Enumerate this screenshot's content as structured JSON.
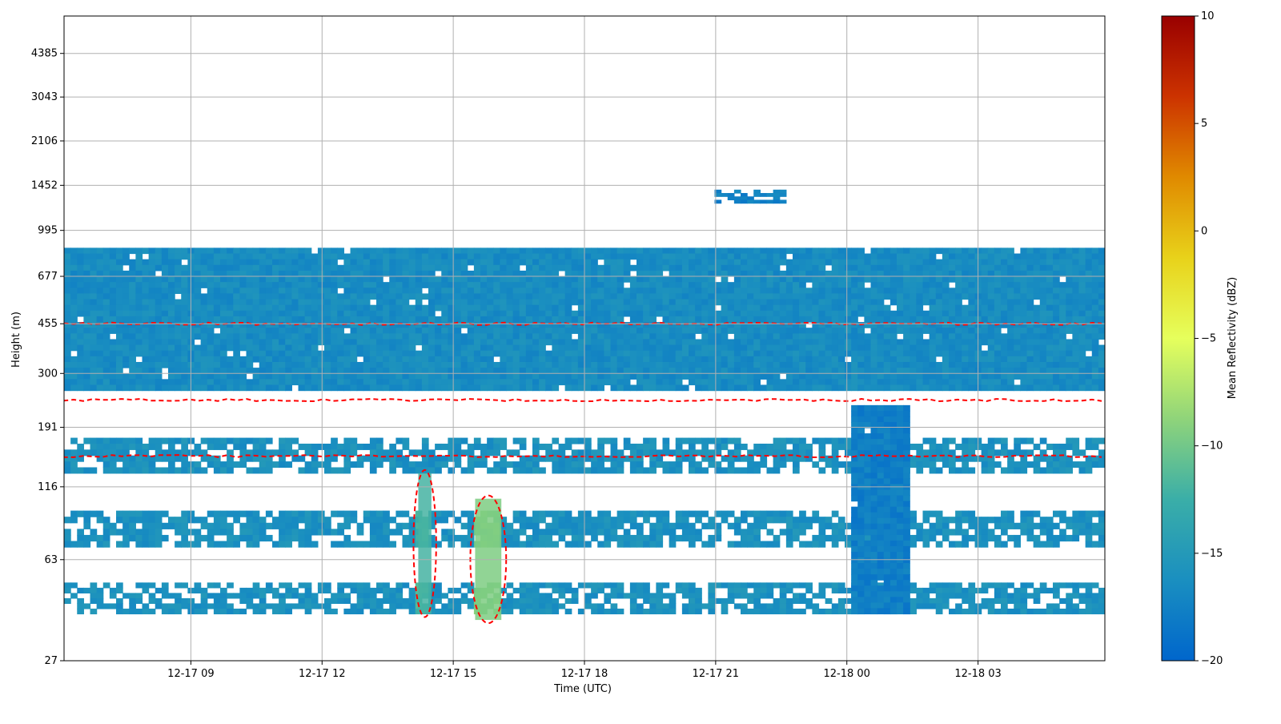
{
  "chart_data": {
    "type": "heatmap",
    "xlabel": "Time (UTC)",
    "ylabel": "Height (m)",
    "x_tick_labels": [
      "12-17 09",
      "12-17 12",
      "12-17 15",
      "12-17 18",
      "12-17 21",
      "12-18 00",
      "12-18 03"
    ],
    "x_tick_hours": [
      9,
      12,
      15,
      18,
      21,
      24,
      27
    ],
    "xlim_hours": [
      6.1,
      29.9
    ],
    "y_tick_labels": [
      "27",
      "63",
      "116",
      "191",
      "300",
      "455",
      "677",
      "995",
      "1452",
      "2106",
      "3043",
      "4385"
    ],
    "y_scale": "log",
    "ylim": [
      27,
      6000
    ],
    "grid": true,
    "colorbar": {
      "label": "Mean Reflectivity (dBZ)",
      "ticks": [
        "10",
        "5",
        "0",
        "−5",
        "−10",
        "−15",
        "−20"
      ],
      "tick_values": [
        10,
        5,
        0,
        -5,
        -10,
        -15,
        -20
      ],
      "range": [
        -20,
        10
      ],
      "colormap": [
        "#0066cc",
        "#1a8fc0",
        "#3aaea8",
        "#8fd47a",
        "#e6ff5c",
        "#e8d21a",
        "#e08a00",
        "#cc3300",
        "#990000"
      ]
    },
    "contour_color": "#ff0000",
    "layers": [
      {
        "name": "upper_layer",
        "y_range": [
          260,
          860
        ],
        "x_range": [
          6.1,
          29.9
        ],
        "dbz": -16.5
      },
      {
        "name": "mid_band",
        "y_range": [
          130,
          175
        ],
        "x_range": [
          6.1,
          29.9
        ],
        "dbz": -16.0
      },
      {
        "name": "low_band_a",
        "y_range": [
          70,
          95
        ],
        "x_range": [
          6.1,
          29.9
        ],
        "dbz": -16.0
      },
      {
        "name": "low_band_b",
        "y_range": [
          40,
          52
        ],
        "x_range": [
          6.1,
          29.9
        ],
        "dbz": -16.0
      },
      {
        "name": "cloud_aloft",
        "y_range": [
          1250,
          1400
        ],
        "x_range": [
          21.0,
          22.6
        ],
        "dbz": -17.5
      },
      {
        "name": "deep_column",
        "y_range": [
          40,
          230
        ],
        "x_range": [
          24.1,
          25.4
        ],
        "dbz": -17.8
      }
    ],
    "enhanced_regions": [
      {
        "x_range": [
          14.2,
          14.5
        ],
        "y_range": [
          40,
          130
        ],
        "dbz": -12.0
      },
      {
        "x_range": [
          15.5,
          16.1
        ],
        "y_range": [
          38,
          105
        ],
        "dbz": -9.5
      }
    ]
  }
}
